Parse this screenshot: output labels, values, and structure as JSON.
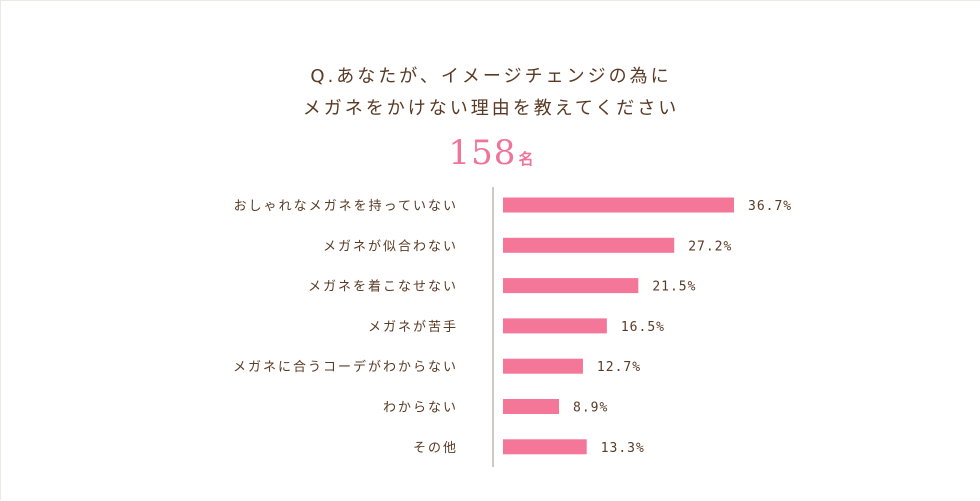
{
  "question": {
    "line1": "Q.あなたが、イメージチェンジの為に",
    "line2": "メガネをかけない理由を教えてください"
  },
  "respondents": {
    "count": "158",
    "unit": "名"
  },
  "colors": {
    "bar": "#f47699",
    "accent": "#f07499",
    "text": "#5a3a24"
  },
  "chart_data": {
    "type": "bar",
    "orientation": "horizontal",
    "categories": [
      "おしゃれなメガネを持っていない",
      "メガネが似合わない",
      "メガネを着こなせない",
      "メガネが苦手",
      "メガネに合うコーデがわからない",
      "わからない",
      "その他"
    ],
    "values": [
      36.7,
      27.2,
      21.5,
      16.5,
      12.7,
      8.9,
      13.3
    ],
    "value_labels": [
      "36.7%",
      "27.2%",
      "21.5%",
      "16.5%",
      "12.7%",
      "8.9%",
      "13.3%"
    ],
    "xlim": [
      0,
      40
    ],
    "grid": false,
    "legend": "none"
  }
}
